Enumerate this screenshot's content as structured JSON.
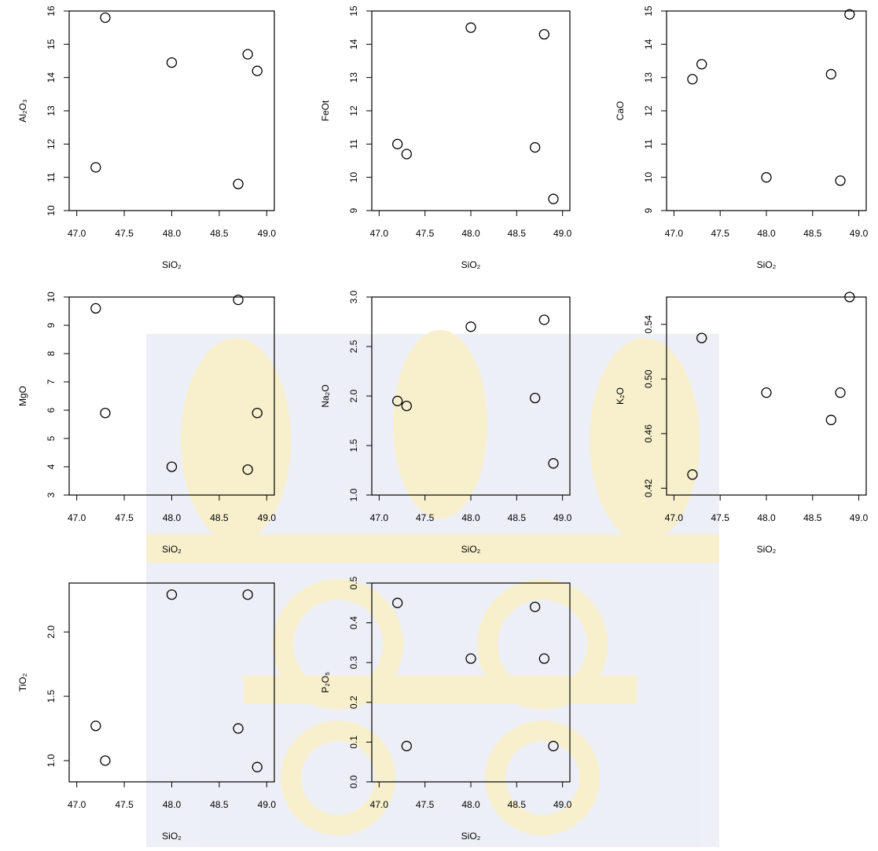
{
  "chart_data": [
    {
      "type": "scatter",
      "x_label": "SiO₂",
      "y_label": "Al₂O₃",
      "x": [
        47.2,
        47.3,
        48.0,
        48.7,
        48.8,
        48.9
      ],
      "values": [
        11.3,
        15.8,
        14.45,
        10.8,
        14.7,
        14.2
      ],
      "xlim": [
        46.92,
        49.08
      ],
      "xticks": [
        {
          "value": 47,
          "label": "47.0"
        },
        47.5,
        {
          "value": 48,
          "label": "48.0"
        },
        48.5,
        {
          "value": 49,
          "label": "49.0"
        }
      ],
      "ylim": [
        10,
        16
      ],
      "yticks": [
        10,
        11,
        12,
        13,
        14,
        15,
        16
      ]
    },
    {
      "type": "scatter",
      "x_label": "SiO₂",
      "y_label": "FeOt",
      "x": [
        47.2,
        47.3,
        48.0,
        48.7,
        48.8,
        48.9
      ],
      "values": [
        11.0,
        10.7,
        14.5,
        10.9,
        14.3,
        9.35
      ],
      "xlim": [
        46.92,
        49.08
      ],
      "xticks": [
        {
          "value": 47,
          "label": "47.0"
        },
        47.5,
        {
          "value": 48,
          "label": "48.0"
        },
        48.5,
        {
          "value": 49,
          "label": "49.0"
        }
      ],
      "ylim": [
        9,
        15
      ],
      "yticks": [
        9,
        10,
        11,
        12,
        13,
        14,
        15
      ]
    },
    {
      "type": "scatter",
      "x_label": "SiO₂",
      "y_label": "CaO",
      "x": [
        47.2,
        47.3,
        48.0,
        48.7,
        48.8,
        48.9
      ],
      "values": [
        12.95,
        13.4,
        10.0,
        13.1,
        9.9,
        14.9
      ],
      "xlim": [
        46.92,
        49.08
      ],
      "xticks": [
        {
          "value": 47,
          "label": "47.0"
        },
        47.5,
        {
          "value": 48,
          "label": "48.0"
        },
        48.5,
        {
          "value": 49,
          "label": "49.0"
        }
      ],
      "ylim": [
        9,
        15
      ],
      "yticks": [
        9,
        10,
        11,
        12,
        13,
        14,
        15
      ]
    },
    {
      "type": "scatter",
      "x_label": "SiO₂",
      "y_label": "MgO",
      "x": [
        47.2,
        47.3,
        48.0,
        48.7,
        48.8,
        48.9
      ],
      "values": [
        9.6,
        5.9,
        4.0,
        9.9,
        3.9,
        5.9
      ],
      "xlim": [
        46.92,
        49.08
      ],
      "xticks": [
        {
          "value": 47,
          "label": "47.0"
        },
        47.5,
        {
          "value": 48,
          "label": "48.0"
        },
        48.5,
        {
          "value": 49,
          "label": "49.0"
        }
      ],
      "ylim": [
        3,
        10
      ],
      "yticks": [
        3,
        4,
        5,
        6,
        7,
        8,
        9,
        10
      ]
    },
    {
      "type": "scatter",
      "x_label": "SiO₂",
      "y_label": "Na₂O",
      "x": [
        47.2,
        47.3,
        48.0,
        48.7,
        48.8,
        48.9
      ],
      "values": [
        1.95,
        1.9,
        2.7,
        1.98,
        2.77,
        1.32
      ],
      "xlim": [
        46.92,
        49.08
      ],
      "xticks": [
        {
          "value": 47,
          "label": "47.0"
        },
        47.5,
        {
          "value": 48,
          "label": "48.0"
        },
        48.5,
        {
          "value": 49,
          "label": "49.0"
        }
      ],
      "ylim": [
        1,
        3
      ],
      "yticks": [
        {
          "value": 1,
          "label": "1.0"
        },
        1.5,
        {
          "value": 2,
          "label": "2.0"
        },
        2.5,
        {
          "value": 3,
          "label": "3.0"
        }
      ]
    },
    {
      "type": "scatter",
      "x_label": "SiO₂",
      "y_label": "K₂O",
      "x": [
        47.2,
        47.3,
        48.0,
        48.7,
        48.8,
        48.9
      ],
      "values": [
        0.43,
        0.53,
        0.49,
        0.47,
        0.49,
        0.56
      ],
      "xlim": [
        46.92,
        49.08
      ],
      "xticks": [
        {
          "value": 47,
          "label": "47.0"
        },
        47.5,
        {
          "value": 48,
          "label": "48.0"
        },
        48.5,
        {
          "value": 49,
          "label": "49.0"
        }
      ],
      "ylim": [
        0.415,
        0.56
      ],
      "yticks": [
        0.42,
        0.46,
        {
          "value": 0.5,
          "label": "0.50"
        },
        0.54
      ]
    },
    {
      "type": "scatter",
      "x_label": "SiO₂",
      "y_label": "TiO₂",
      "x": [
        47.2,
        47.3,
        48.0,
        48.7,
        48.8,
        48.9
      ],
      "values": [
        1.27,
        1.0,
        2.29,
        1.25,
        2.29,
        0.95
      ],
      "xlim": [
        46.92,
        49.08
      ],
      "xticks": [
        {
          "value": 47,
          "label": "47.0"
        },
        47.5,
        {
          "value": 48,
          "label": "48.0"
        },
        48.5,
        {
          "value": 49,
          "label": "49.0"
        }
      ],
      "ylim": [
        0.835,
        2.38
      ],
      "yticks": [
        {
          "value": 1,
          "label": "1.0"
        },
        1.5,
        {
          "value": 2,
          "label": "2.0"
        }
      ]
    },
    {
      "type": "scatter",
      "x_label": "SiO₂",
      "y_label": "P₂O₅",
      "x": [
        47.2,
        47.3,
        48.0,
        48.7,
        48.8,
        48.9
      ],
      "values": [
        0.45,
        0.09,
        0.31,
        0.44,
        0.31,
        0.09
      ],
      "xlim": [
        46.92,
        49.08
      ],
      "xticks": [
        {
          "value": 47,
          "label": "47.0"
        },
        47.5,
        {
          "value": 48,
          "label": "48.0"
        },
        48.5,
        {
          "value": 49,
          "label": "49.0"
        }
      ],
      "ylim": [
        0,
        0.5
      ],
      "yticks": [
        {
          "value": 0,
          "label": "0.0"
        },
        0.1,
        0.2,
        0.3,
        0.4,
        0.5
      ]
    }
  ]
}
